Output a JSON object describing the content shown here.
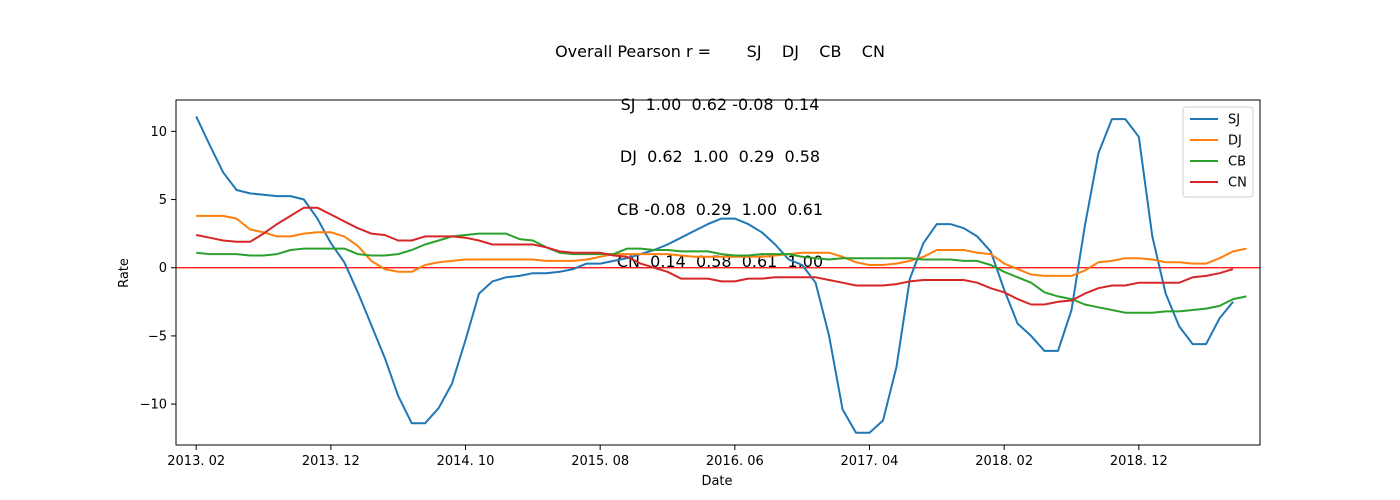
{
  "chart_data": {
    "type": "line",
    "title_lines": [
      "Overall Pearson r =       SJ    DJ    CB    CN",
      "SJ  1.00  0.62 -0.08  0.14",
      "DJ  0.62  1.00  0.29  0.58",
      "CB -0.08  0.29  1.00  0.61",
      "CN  0.14  0.58  0.61  1.00"
    ],
    "xlabel": "Date",
    "ylabel": "Rate",
    "x_ticks": [
      "2013. 02",
      "2013. 12",
      "2014. 10",
      "2015. 08",
      "2016. 06",
      "2017. 04",
      "2018. 02",
      "2018. 12"
    ],
    "y_ticks": [
      -10,
      -5,
      0,
      5,
      10
    ],
    "xlim_index": [
      -1.5,
      79
    ],
    "ylim": [
      -13.0,
      12.3
    ],
    "reference_line": {
      "y": 0,
      "color": "#ff0000"
    },
    "grid": false,
    "legend_position": "top-right",
    "series": [
      {
        "name": "SJ",
        "color": "#1f77b4",
        "values": [
          11.1,
          9.0,
          7.0,
          5.7,
          5.45,
          5.35,
          5.25,
          5.25,
          5.0,
          3.6,
          1.8,
          0.4,
          -1.8,
          -4.2,
          -6.6,
          -9.4,
          -11.4,
          -11.4,
          -10.3,
          -8.5,
          -5.3,
          -1.9,
          -1.0,
          -0.7,
          -0.6,
          -0.4,
          -0.4,
          -0.3,
          -0.1,
          0.3,
          0.3,
          0.5,
          0.7,
          1.0,
          1.3,
          1.7,
          2.2,
          2.7,
          3.2,
          3.6,
          3.6,
          3.2,
          2.6,
          1.7,
          0.6,
          0.2,
          -1.1,
          -5.0,
          -10.4,
          -12.1,
          -12.1,
          -11.2,
          -7.3,
          -0.8,
          1.8,
          3.2,
          3.2,
          2.9,
          2.3,
          1.2,
          -1.6,
          -4.1,
          -5.0,
          -6.1,
          -6.1,
          -3.1,
          3.1,
          8.4,
          10.9,
          10.9,
          9.6,
          2.3,
          -1.9,
          -4.3,
          -5.6,
          -5.6,
          -3.7,
          -2.5
        ]
      },
      {
        "name": "DJ",
        "color": "#ff7f0e",
        "values": [
          3.8,
          3.8,
          3.8,
          3.6,
          2.8,
          2.6,
          2.3,
          2.3,
          2.5,
          2.6,
          2.6,
          2.3,
          1.6,
          0.5,
          -0.1,
          -0.3,
          -0.3,
          0.2,
          0.4,
          0.5,
          0.6,
          0.6,
          0.6,
          0.6,
          0.6,
          0.6,
          0.5,
          0.5,
          0.5,
          0.6,
          0.8,
          1.0,
          1.0,
          1.0,
          1.0,
          1.0,
          0.9,
          0.8,
          0.8,
          0.8,
          0.8,
          0.8,
          0.8,
          0.9,
          1.0,
          1.1,
          1.1,
          1.1,
          0.8,
          0.4,
          0.2,
          0.2,
          0.3,
          0.5,
          0.8,
          1.3,
          1.3,
          1.3,
          1.1,
          1.0,
          0.3,
          -0.1,
          -0.5,
          -0.6,
          -0.6,
          -0.6,
          -0.2,
          0.4,
          0.5,
          0.7,
          0.7,
          0.6,
          0.4,
          0.4,
          0.3,
          0.3,
          0.7,
          1.2,
          1.4
        ]
      },
      {
        "name": "CB",
        "color": "#2ca02c",
        "values": [
          1.1,
          1.0,
          1.0,
          1.0,
          0.9,
          0.9,
          1.0,
          1.3,
          1.4,
          1.4,
          1.4,
          1.4,
          1.0,
          0.9,
          0.9,
          1.0,
          1.3,
          1.7,
          2.0,
          2.3,
          2.4,
          2.5,
          2.5,
          2.5,
          2.1,
          2.0,
          1.5,
          1.1,
          1.0,
          1.0,
          1.0,
          1.0,
          1.4,
          1.4,
          1.3,
          1.3,
          1.2,
          1.2,
          1.2,
          1.0,
          0.9,
          0.9,
          1.0,
          1.0,
          1.0,
          0.8,
          0.7,
          0.6,
          0.7,
          0.7,
          0.7,
          0.7,
          0.7,
          0.7,
          0.6,
          0.6,
          0.6,
          0.5,
          0.5,
          0.2,
          -0.3,
          -0.7,
          -1.1,
          -1.8,
          -2.1,
          -2.3,
          -2.7,
          -2.9,
          -3.1,
          -3.3,
          -3.3,
          -3.3,
          -3.2,
          -3.2,
          -3.1,
          -3.0,
          -2.8,
          -2.3,
          -2.1
        ]
      },
      {
        "name": "CN",
        "color": "#d62728",
        "values": [
          2.4,
          2.2,
          2.0,
          1.9,
          1.9,
          2.5,
          3.2,
          3.8,
          4.4,
          4.4,
          3.9,
          3.4,
          2.9,
          2.5,
          2.4,
          2.0,
          2.0,
          2.3,
          2.3,
          2.3,
          2.2,
          2.0,
          1.7,
          1.7,
          1.7,
          1.7,
          1.5,
          1.2,
          1.1,
          1.1,
          1.1,
          0.9,
          0.8,
          0.3,
          0.0,
          -0.3,
          -0.8,
          -0.8,
          -0.8,
          -1.0,
          -1.0,
          -0.8,
          -0.8,
          -0.7,
          -0.7,
          -0.7,
          -0.7,
          -0.9,
          -1.1,
          -1.3,
          -1.3,
          -1.3,
          -1.2,
          -1.0,
          -0.9,
          -0.9,
          -0.9,
          -0.9,
          -1.1,
          -1.5,
          -1.8,
          -2.3,
          -2.7,
          -2.7,
          -2.5,
          -2.4,
          -1.9,
          -1.5,
          -1.3,
          -1.3,
          -1.1,
          -1.1,
          -1.1,
          -1.1,
          -0.7,
          -0.6,
          -0.4,
          -0.1
        ]
      }
    ]
  }
}
